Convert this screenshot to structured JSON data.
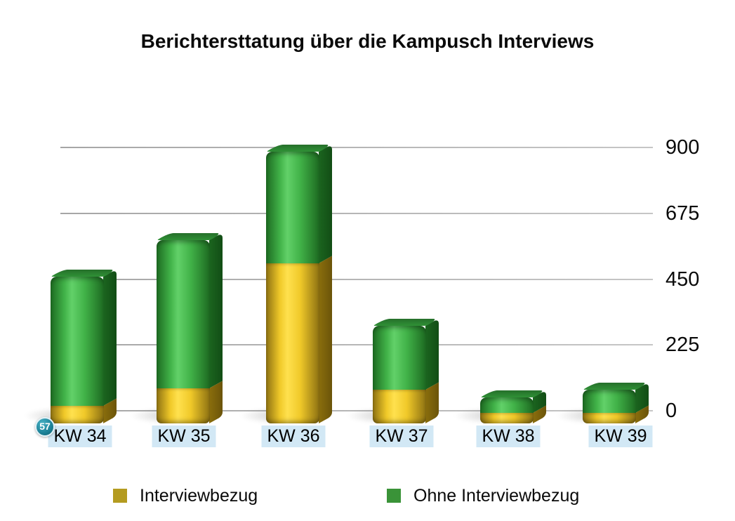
{
  "chart_data": {
    "type": "bar",
    "stacked": true,
    "style": "3d",
    "title": "Berichtersttatung über die Kampusch Interviews",
    "categories": [
      "KW 34",
      "KW 35",
      "KW 36",
      "KW 37",
      "KW 38",
      "KW 39"
    ],
    "series": [
      {
        "name": "Interviewbezug",
        "values": [
          57,
          115,
          525,
          110,
          35,
          35
        ],
        "colors": {
          "fill": "#f0c929",
          "light": "#ffe14e",
          "edge_dark": "#8d7112",
          "side": "#8a6e0c",
          "side_dark": "#6b540a",
          "legend": "#b49b20"
        }
      },
      {
        "name": "Ohne Interviewbezug",
        "values": [
          423,
          485,
          365,
          210,
          50,
          75
        ],
        "colors": {
          "fill": "#41b248",
          "light": "#62d169",
          "edge_dark": "#1d6a21",
          "side": "#1b651f",
          "side_dark": "#124d15",
          "top_back": "#256f2a",
          "top_front": "#2f9136",
          "legend": "#3a9338"
        }
      }
    ],
    "ylim": [
      0,
      900
    ],
    "yticks": [
      0,
      225,
      450,
      675,
      900
    ],
    "grid": "horizontal",
    "legend_position": "bottom",
    "annotations": [
      {
        "text": "57",
        "category": "KW 34",
        "series": "Interviewbezug"
      }
    ]
  },
  "colors": {
    "background": "#ffffff",
    "gridline": "#b6b6b6",
    "category_label_bg": "#d2e8f5",
    "badge_bg": "#1a7f95",
    "badge_text": "#ffffff",
    "text": "#0a0a0a"
  }
}
